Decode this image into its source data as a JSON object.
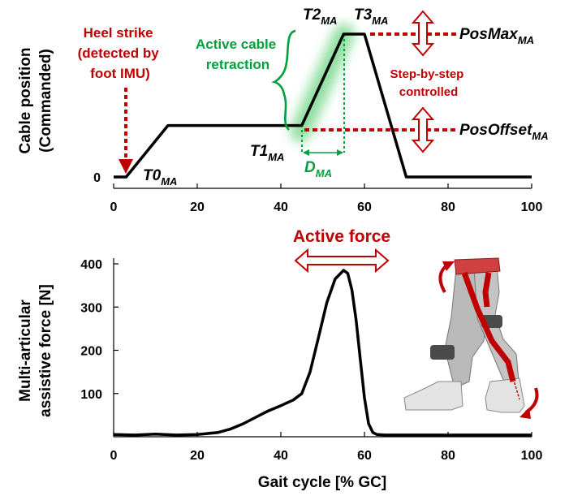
{
  "colors": {
    "line": "#000000",
    "annotation_red": "#c00000",
    "annotation_green": "#00a03c",
    "green_glow": "#7cd98f"
  },
  "chart_data": [
    {
      "type": "line",
      "ylabel_line1": "Cable position",
      "ylabel_line2": "(Commanded)",
      "xlim": [
        0,
        100
      ],
      "x_ticks": [
        "0",
        "20",
        "40",
        "60",
        "80",
        "100"
      ],
      "y_ticks": [
        "0"
      ],
      "x": [
        0,
        3,
        13,
        45,
        55,
        60,
        70,
        100
      ],
      "y": [
        0,
        0,
        0.36,
        0.36,
        1.0,
        1.0,
        0,
        0
      ],
      "annotations": {
        "heel_strike": [
          "Heel strike",
          "(detected by",
          "foot IMU)"
        ],
        "active_cable": [
          "Active cable",
          "retraction"
        ],
        "step_by_step": [
          "Step-by-step",
          "controlled"
        ],
        "t0": "T0",
        "t0_sub": "MA",
        "t1": "T1",
        "t1_sub": "MA",
        "t2": "T2",
        "t2_sub": "MA",
        "t3": "T3",
        "t3_sub": "MA",
        "d": "D",
        "d_sub": "MA",
        "posmax": "PosMax",
        "posmax_sub": "MA",
        "posoffset": "PosOffset",
        "posoffset_sub": "MA"
      }
    },
    {
      "type": "line",
      "ylabel_line1": "Multi-articular",
      "ylabel_line2": "assistive force [N]",
      "xlabel": "Gait cycle [% GC]",
      "xlim": [
        0,
        100
      ],
      "ylim": [
        0,
        400
      ],
      "x_ticks": [
        "0",
        "20",
        "40",
        "60",
        "80",
        "100"
      ],
      "y_ticks": [
        "100",
        "200",
        "300",
        "400"
      ],
      "x": [
        0,
        5,
        10,
        15,
        20,
        25,
        28,
        31,
        34,
        37,
        40,
        43,
        45,
        47,
        49,
        51,
        53,
        55,
        56,
        57,
        58,
        59,
        60,
        61,
        62,
        63,
        65,
        70,
        80,
        90,
        100
      ],
      "y": [
        5,
        4,
        6,
        4,
        5,
        10,
        18,
        30,
        45,
        60,
        72,
        85,
        100,
        150,
        230,
        310,
        365,
        385,
        378,
        340,
        270,
        180,
        90,
        30,
        10,
        5,
        4,
        4,
        4,
        4,
        4
      ],
      "annotations": {
        "active_force": "Active force"
      }
    }
  ]
}
